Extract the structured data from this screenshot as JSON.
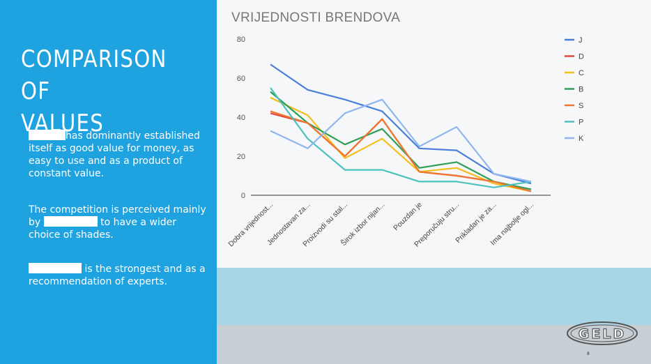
{
  "slide": {
    "title_line1": "COMPARISON OF",
    "title_line2": "VALUES",
    "paragraphs": [
      {
        "before": "",
        "after": "has dominantly established itself as good value for money, as easy to use and as a product of constant value."
      },
      {
        "before": "The competition is perceived mainly by",
        "after": "to have a wider choice of shades."
      },
      {
        "before": "",
        "after": "is the strongest and as a recommendation of experts."
      }
    ],
    "page_number": "8",
    "logo_text": "GELD"
  },
  "colors": {
    "panel": "#1ea2e0",
    "J": "#4a7fd9",
    "D": "#e2483c",
    "C": "#f5bd1e",
    "B": "#2f9e58",
    "S": "#f0762f",
    "P": "#4dc2bc",
    "K": "#8fb6ee"
  },
  "chart_data": {
    "type": "line",
    "title": "VRIJEDNOSTI BRENDOVA",
    "xlabel": "",
    "ylabel": "",
    "ylim": [
      0,
      80
    ],
    "yticks": [
      "0",
      "20",
      "40",
      "60",
      "80"
    ],
    "grid": false,
    "legend_position": "right",
    "categories": [
      "Dobra vrijednost...",
      "Jednostavan za...",
      "Proizvodi su stal...",
      "Širok izbor nijan...",
      "Pouzdan je",
      "Preporučuju stru...",
      "Prikladan je za...",
      "Ima najbolje ogl..."
    ],
    "series": [
      {
        "name": "J",
        "color": "#4a7fd9",
        "values": [
          67,
          54,
          49,
          43,
          24,
          23,
          11,
          6
        ]
      },
      {
        "name": "D",
        "color": "#e2483c",
        "values": [
          42,
          37,
          20,
          39,
          12,
          10,
          7,
          3
        ]
      },
      {
        "name": "C",
        "color": "#f5bd1e",
        "values": [
          50,
          41,
          19,
          29,
          12,
          14,
          6,
          2
        ]
      },
      {
        "name": "B",
        "color": "#2f9e58",
        "values": [
          53,
          37,
          26,
          34,
          14,
          17,
          7,
          3
        ]
      },
      {
        "name": "S",
        "color": "#f0762f",
        "values": [
          43,
          37,
          20,
          39,
          12,
          10,
          7,
          2
        ]
      },
      {
        "name": "P",
        "color": "#4dc2bc",
        "values": [
          55,
          29,
          13,
          13,
          7,
          7,
          4,
          7
        ]
      },
      {
        "name": "K",
        "color": "#8fb6ee",
        "values": [
          33,
          24,
          42,
          49,
          25,
          35,
          11,
          7
        ]
      }
    ]
  }
}
